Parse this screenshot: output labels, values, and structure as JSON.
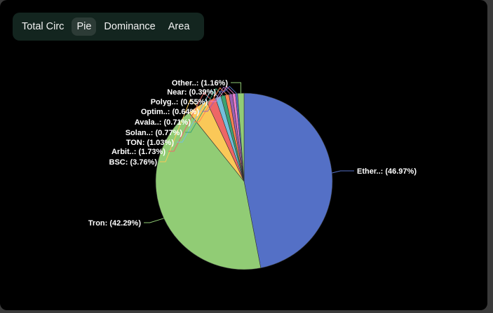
{
  "tabs": [
    {
      "label": "Total Circ",
      "active": false
    },
    {
      "label": "Pie",
      "active": true
    },
    {
      "label": "Dominance",
      "active": false
    },
    {
      "label": "Area",
      "active": false
    }
  ],
  "chart_data": {
    "type": "pie",
    "slices": [
      {
        "label": "Ether..: (46.97%)",
        "value": 46.97,
        "color": "#5470c6"
      },
      {
        "label": "Tron: (42.29%)",
        "value": 42.29,
        "color": "#91cc75"
      },
      {
        "label": "BSC: (3.76%)",
        "value": 3.76,
        "color": "#fac858"
      },
      {
        "label": "Arbit..: (1.73%)",
        "value": 1.73,
        "color": "#ee6666"
      },
      {
        "label": "TON: (1.03%)",
        "value": 1.03,
        "color": "#73c0de"
      },
      {
        "label": "Solan..: (0.77%)",
        "value": 0.77,
        "color": "#3ba272"
      },
      {
        "label": "Avala..: (0.71%)",
        "value": 0.71,
        "color": "#fc8452"
      },
      {
        "label": "Optim..: (0.64%)",
        "value": 0.64,
        "color": "#9a60b4"
      },
      {
        "label": "Polyg..: (0.55%)",
        "value": 0.55,
        "color": "#ea7ccc"
      },
      {
        "label": "Near: (0.39%)",
        "value": 0.39,
        "color": "#5470c6"
      },
      {
        "label": "Other..: (1.16%)",
        "value": 1.16,
        "color": "#91cc75"
      }
    ]
  }
}
